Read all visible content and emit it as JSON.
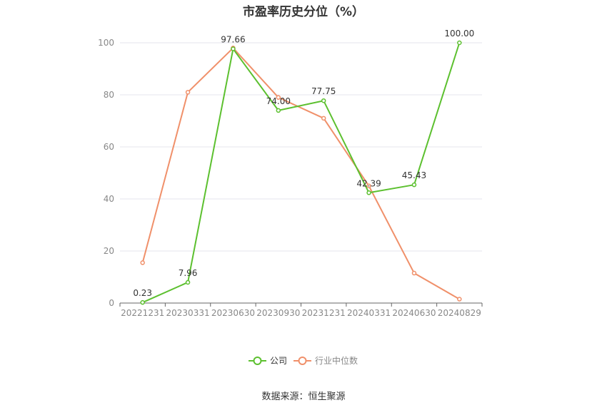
{
  "title": "市盈率历史分位（%）",
  "source": "数据来源：恒生聚源",
  "colors": {
    "company": "#5cc02f",
    "industry": "#f0906a",
    "axis": "#666666",
    "grid": "#e6e6ee"
  },
  "chart_data": {
    "type": "line",
    "title": "市盈率历史分位（%）",
    "categories": [
      "20221231",
      "20230331",
      "20230630",
      "20230930",
      "20231231",
      "20240331",
      "20240630",
      "20240829"
    ],
    "series": [
      {
        "name": "公司",
        "values": [
          0.23,
          7.96,
          97.66,
          74.0,
          77.75,
          42.39,
          45.43,
          100.0
        ],
        "labels": [
          "0.23",
          "7.96",
          "97.66",
          "74.00",
          "77.75",
          "42.39",
          "45.43",
          "100.00"
        ]
      },
      {
        "name": "行业中位数",
        "values": [
          15.5,
          81,
          98,
          79,
          71,
          45,
          11.5,
          1.5
        ]
      }
    ],
    "yticks": [
      0,
      20,
      40,
      60,
      80,
      100
    ],
    "ylim": [
      0,
      100
    ],
    "grid": true,
    "legend": "bottom-center"
  }
}
